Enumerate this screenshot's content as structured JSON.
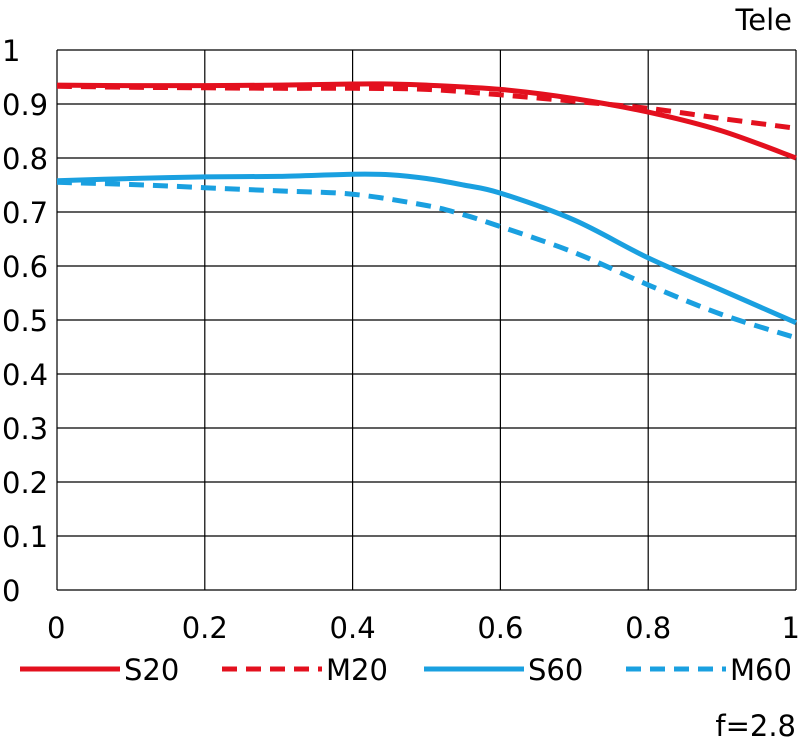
{
  "chart_data": {
    "type": "line",
    "title": "Tele",
    "footnote": "f=2.8",
    "xlabel": "",
    "ylabel": "",
    "xlim": [
      0,
      1
    ],
    "ylim": [
      0,
      1
    ],
    "xticks": [
      "0",
      "0.2",
      "0.4",
      "0.6",
      "0.8",
      "1"
    ],
    "yticks": [
      "0",
      "0.1",
      "0.2",
      "0.3",
      "0.4",
      "0.5",
      "0.6",
      "0.7",
      "0.8",
      "0.9",
      "1"
    ],
    "grid": true,
    "legend_position": "bottom",
    "series": [
      {
        "name": "S20",
        "color": "#e3101e",
        "dash": "solid",
        "x": [
          0,
          0.1,
          0.2,
          0.3,
          0.4,
          0.45,
          0.5,
          0.6,
          0.7,
          0.8,
          0.9,
          1.0
        ],
        "y": [
          0.935,
          0.934,
          0.934,
          0.935,
          0.937,
          0.937,
          0.935,
          0.927,
          0.91,
          0.885,
          0.85,
          0.8
        ]
      },
      {
        "name": "M20",
        "color": "#e3101e",
        "dash": "dashed",
        "x": [
          0,
          0.1,
          0.2,
          0.3,
          0.4,
          0.5,
          0.6,
          0.7,
          0.8,
          0.9,
          1.0
        ],
        "y": [
          0.933,
          0.931,
          0.93,
          0.929,
          0.929,
          0.927,
          0.917,
          0.905,
          0.892,
          0.873,
          0.855
        ]
      },
      {
        "name": "S60",
        "color": "#1aa0e0",
        "dash": "solid",
        "x": [
          0,
          0.1,
          0.2,
          0.3,
          0.4,
          0.45,
          0.5,
          0.55,
          0.6,
          0.7,
          0.8,
          0.9,
          1.0
        ],
        "y": [
          0.758,
          0.762,
          0.765,
          0.766,
          0.77,
          0.769,
          0.762,
          0.75,
          0.735,
          0.685,
          0.615,
          0.555,
          0.495
        ]
      },
      {
        "name": "M60",
        "color": "#1aa0e0",
        "dash": "dashed",
        "x": [
          0,
          0.1,
          0.2,
          0.3,
          0.4,
          0.5,
          0.55,
          0.6,
          0.7,
          0.8,
          0.9,
          1.0
        ],
        "y": [
          0.755,
          0.751,
          0.745,
          0.739,
          0.733,
          0.712,
          0.695,
          0.673,
          0.625,
          0.565,
          0.51,
          0.467
        ]
      }
    ]
  }
}
